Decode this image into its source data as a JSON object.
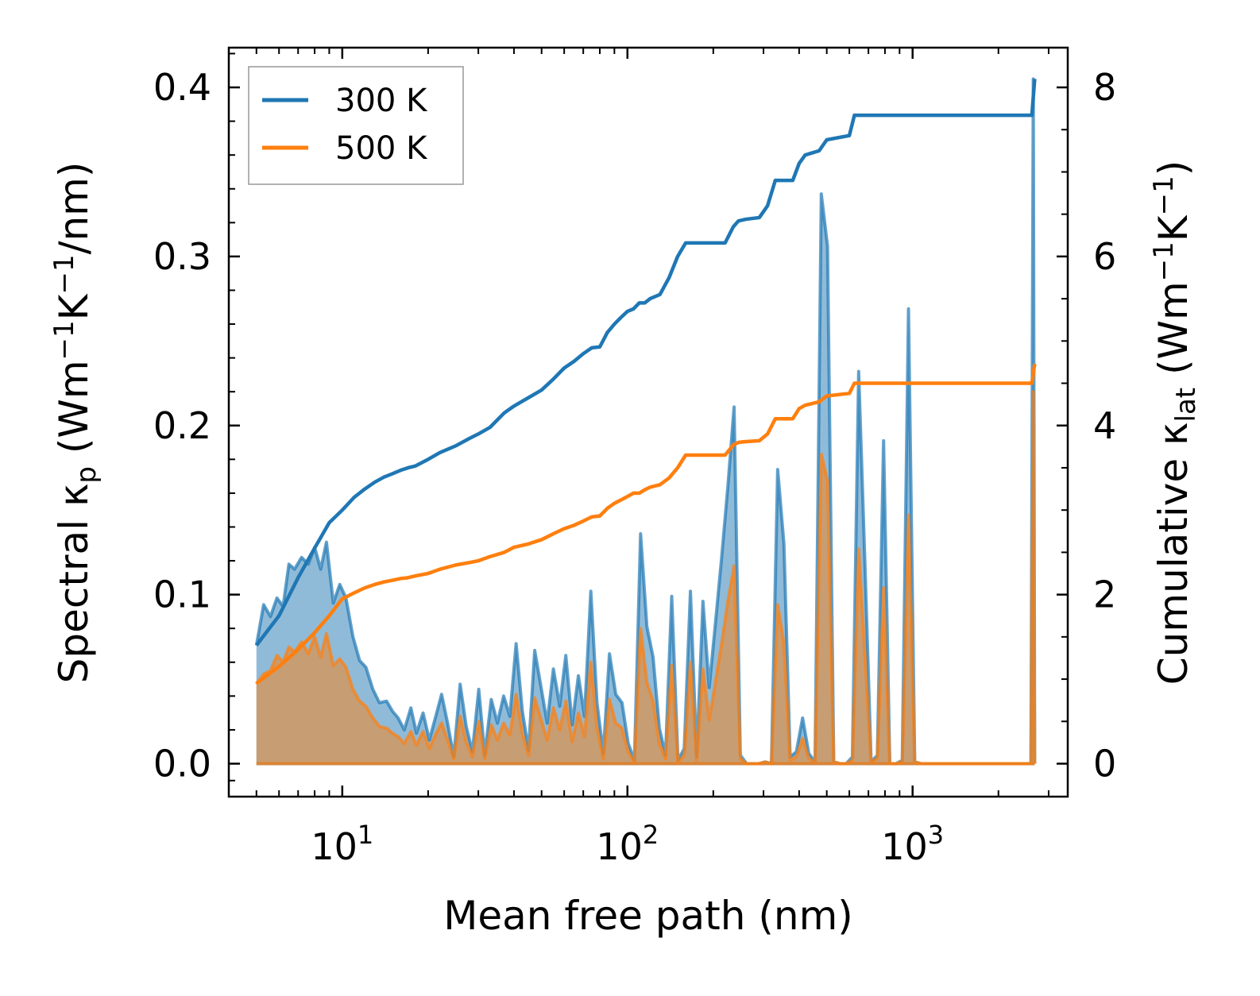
{
  "chart_data": {
    "type": "line",
    "xscale": "log",
    "xlim": [
      4.0,
      3500
    ],
    "ylim_left": [
      -0.0195,
      0.4235
    ],
    "ylim_right": [
      -0.39,
      8.47
    ],
    "xlabel": "Mean free path (nm)",
    "ylabel_left_prefix": "Spectral κ",
    "ylabel_left_sub": "p",
    "ylabel_left_units_1": " (Wm",
    "ylabel_left_sup_1": "−1",
    "ylabel_left_units_2": "K",
    "ylabel_left_sup_2": "−1",
    "ylabel_left_units_3": "/nm)",
    "ylabel_right_prefix": "Cumulative κ",
    "ylabel_right_sub": "lat",
    "ylabel_right_units_1": " (Wm",
    "ylabel_right_sup_1": "−1",
    "ylabel_right_units_2": "K",
    "ylabel_right_sup_2": "−1",
    "ylabel_right_units_3": ")",
    "x_ticks": [
      {
        "value": 10,
        "base": "10",
        "exp": "1"
      },
      {
        "value": 100,
        "base": "10",
        "exp": "2"
      },
      {
        "value": 1000,
        "base": "10",
        "exp": "3"
      }
    ],
    "y_left_ticks": [
      0.0,
      0.1,
      0.2,
      0.3,
      0.4
    ],
    "y_left_tick_labels": [
      "0.0",
      "0.1",
      "0.2",
      "0.3",
      "0.4"
    ],
    "y_right_ticks": [
      0,
      2,
      4,
      6,
      8
    ],
    "y_right_tick_labels": [
      "0",
      "2",
      "4",
      "6",
      "8"
    ],
    "legend": {
      "placement": "upper-left",
      "entries": [
        "300 K",
        "500 K"
      ]
    },
    "colors": {
      "300 K": "#1f77b4",
      "500 K": "#ff7f0e"
    },
    "spectral_x": [
      5.0,
      5.3,
      5.6,
      5.9,
      6.2,
      6.5,
      6.8,
      7.2,
      7.6,
      8.0,
      8.4,
      8.8,
      9.3,
      9.8,
      10.3,
      10.9,
      11.5,
      12.1,
      12.8,
      13.5,
      14.3,
      15.0,
      15.7,
      16.5,
      17.4,
      18.2,
      19.2,
      20.2,
      21.2,
      22.3,
      23.4,
      24.6,
      25.9,
      27.2,
      28.6,
      30.1,
      31.6,
      33.3,
      35.0,
      36.8,
      38.7,
      40.7,
      42.8,
      45.0,
      47.3,
      49.8,
      52.3,
      55.0,
      57.9,
      60.8,
      64.0,
      67.3,
      70.7,
      74.4,
      78.2,
      82.3,
      86.5,
      91.0,
      95.7,
      100.6,
      105.8,
      111.2,
      117.0,
      123.0,
      129.4,
      136.0,
      143.0,
      150.4,
      158.2,
      166.3,
      174.9,
      184.0,
      193.5,
      203.5,
      214.0,
      225.0,
      236.6,
      248.8,
      261.6,
      275.1,
      289.3,
      304.2,
      319.9,
      336.4,
      353.8,
      372.0,
      391.2,
      411.4,
      432.6,
      454.9,
      478.4,
      503.1,
      529.0,
      556.3,
      585.0,
      615.2,
      646.9,
      680.3,
      715.4,
      752.3,
      791.1,
      831.9,
      874.8,
      919.9,
      967.4,
      1017.3,
      1069.8,
      1125.0,
      1183.0,
      1244.0,
      1308.2,
      1375.7,
      1446.6,
      1521.2,
      1599.7,
      1682.2,
      1768.9,
      1860.2,
      1956.1,
      2057.0,
      2163.1,
      2274.7,
      2392.0,
      2515.4,
      2600,
      2650,
      2680
    ],
    "series": [
      {
        "name": "300 K",
        "spectral": [
          0.07,
          0.094,
          0.087,
          0.098,
          0.093,
          0.118,
          0.115,
          0.122,
          0.118,
          0.128,
          0.115,
          0.131,
          0.095,
          0.106,
          0.098,
          0.075,
          0.061,
          0.057,
          0.044,
          0.036,
          0.037,
          0.031,
          0.027,
          0.02,
          0.033,
          0.018,
          0.03,
          0.014,
          0.027,
          0.041,
          0.024,
          0.004,
          0.047,
          0.022,
          0.007,
          0.044,
          0.005,
          0.038,
          0.024,
          0.04,
          0.028,
          0.071,
          0.031,
          0.008,
          0.067,
          0.045,
          0.024,
          0.056,
          0.034,
          0.064,
          0.023,
          0.052,
          0.028,
          0.102,
          0.036,
          0.006,
          0.065,
          0.041,
          0.036,
          0.012,
          0.002,
          0.136,
          0.081,
          0.063,
          0.021,
          0.005,
          0.099,
          0.002,
          0.009,
          0.102,
          0.004,
          0.096,
          0.045,
          0.083,
          0.122,
          0.164,
          0.211,
          0.005,
          0.0,
          0.0,
          0.0,
          0.001,
          0.0,
          0.174,
          0.13,
          0.004,
          0.007,
          0.027,
          0.006,
          0.001,
          0.337,
          0.306,
          0.001,
          0.0,
          0.0,
          0.004,
          0.232,
          0.119,
          0.001,
          0.005,
          0.191,
          0.0,
          0.0,
          0.002,
          0.269,
          0.001,
          0.0,
          0.0,
          0.0,
          0.0,
          0.0,
          0.0,
          0.0,
          0.0,
          0.0,
          0.0,
          0.0,
          0.0,
          0.0,
          0.0,
          0.0,
          0.0,
          0.0,
          0.0,
          0.0,
          0.405,
          0.0
        ],
        "cumulative_x": [
          5.0,
          6.0,
          7.0,
          8.0,
          9.0,
          10.0,
          11.0,
          12.0,
          13.0,
          14.0,
          15.0,
          16.0,
          17.0,
          18.0,
          20.0,
          22.0,
          25.0,
          28.0,
          30.0,
          33.0,
          37.0,
          40.0,
          45.0,
          50.0,
          55.0,
          60.0,
          65.0,
          70.0,
          75.0,
          80.0,
          85.0,
          90.0,
          95.0,
          100.0,
          105.0,
          110.0,
          115.0,
          120.0,
          130.0,
          140.0,
          150.0,
          160.0,
          165.0,
          180.0,
          200.0,
          220.0,
          235.0,
          245.0,
          260.0,
          290.0,
          310.0,
          330.0,
          340.0,
          380.0,
          400.0,
          420.0,
          470.0,
          500.0,
          600.0,
          625.0,
          640.0,
          1000.0,
          2000.0,
          2550.0,
          2620.0,
          2680.0
        ],
        "cumulative": [
          1.4,
          1.75,
          2.2,
          2.55,
          2.85,
          3.0,
          3.15,
          3.25,
          3.33,
          3.39,
          3.43,
          3.47,
          3.5,
          3.52,
          3.6,
          3.68,
          3.76,
          3.85,
          3.9,
          3.98,
          4.15,
          4.23,
          4.33,
          4.42,
          4.55,
          4.68,
          4.76,
          4.85,
          4.92,
          4.93,
          5.1,
          5.2,
          5.28,
          5.35,
          5.38,
          5.45,
          5.45,
          5.5,
          5.55,
          5.75,
          6.0,
          6.16,
          6.16,
          6.16,
          6.16,
          6.16,
          6.35,
          6.42,
          6.44,
          6.46,
          6.6,
          6.9,
          6.9,
          6.9,
          7.1,
          7.2,
          7.25,
          7.38,
          7.43,
          7.67,
          7.67,
          7.67,
          7.67,
          7.67,
          7.67,
          8.1
        ]
      },
      {
        "name": "500 K",
        "spectral": [
          0.047,
          0.053,
          0.055,
          0.064,
          0.06,
          0.069,
          0.066,
          0.072,
          0.065,
          0.075,
          0.063,
          0.077,
          0.058,
          0.062,
          0.057,
          0.044,
          0.037,
          0.034,
          0.027,
          0.022,
          0.021,
          0.018,
          0.016,
          0.012,
          0.019,
          0.011,
          0.019,
          0.009,
          0.017,
          0.024,
          0.014,
          0.003,
          0.028,
          0.013,
          0.004,
          0.025,
          0.003,
          0.023,
          0.014,
          0.024,
          0.017,
          0.041,
          0.018,
          0.005,
          0.039,
          0.026,
          0.014,
          0.033,
          0.02,
          0.037,
          0.013,
          0.03,
          0.016,
          0.06,
          0.021,
          0.003,
          0.038,
          0.024,
          0.021,
          0.007,
          0.001,
          0.08,
          0.048,
          0.037,
          0.012,
          0.003,
          0.058,
          0.001,
          0.005,
          0.06,
          0.002,
          0.056,
          0.026,
          0.048,
          0.071,
          0.096,
          0.117,
          0.003,
          0.0,
          0.0,
          0.0,
          0.001,
          0.0,
          0.094,
          0.071,
          0.002,
          0.004,
          0.015,
          0.003,
          0.001,
          0.183,
          0.167,
          0.001,
          0.0,
          0.0,
          0.002,
          0.127,
          0.065,
          0.001,
          0.003,
          0.104,
          0.0,
          0.0,
          0.001,
          0.147,
          0.001,
          0.0,
          0.0,
          0.0,
          0.0,
          0.0,
          0.0,
          0.0,
          0.0,
          0.0,
          0.0,
          0.0,
          0.0,
          0.0,
          0.0,
          0.0,
          0.0,
          0.0,
          0.0,
          0.0,
          0.22,
          0.0
        ],
        "cumulative_x": [
          5.0,
          6.0,
          7.0,
          8.0,
          9.0,
          10.0,
          11.0,
          12.0,
          13.0,
          14.0,
          15.0,
          16.0,
          17.0,
          18.0,
          20.0,
          22.0,
          25.0,
          28.0,
          30.0,
          33.0,
          37.0,
          40.0,
          45.0,
          50.0,
          55.0,
          60.0,
          65.0,
          70.0,
          75.0,
          80.0,
          85.0,
          90.0,
          95.0,
          100.0,
          105.0,
          110.0,
          115.0,
          120.0,
          130.0,
          140.0,
          150.0,
          160.0,
          165.0,
          180.0,
          200.0,
          220.0,
          235.0,
          245.0,
          260.0,
          290.0,
          310.0,
          330.0,
          340.0,
          380.0,
          400.0,
          420.0,
          470.0,
          500.0,
          600.0,
          625.0,
          640.0,
          1000.0,
          2000.0,
          2550.0,
          2620.0,
          2680.0
        ],
        "cumulative": [
          0.95,
          1.15,
          1.35,
          1.55,
          1.75,
          1.95,
          2.02,
          2.08,
          2.12,
          2.15,
          2.17,
          2.19,
          2.2,
          2.22,
          2.25,
          2.3,
          2.35,
          2.38,
          2.4,
          2.45,
          2.5,
          2.56,
          2.6,
          2.65,
          2.72,
          2.78,
          2.82,
          2.87,
          2.92,
          2.93,
          3.02,
          3.08,
          3.12,
          3.16,
          3.2,
          3.2,
          3.24,
          3.27,
          3.3,
          3.38,
          3.5,
          3.65,
          3.65,
          3.65,
          3.65,
          3.65,
          3.77,
          3.8,
          3.81,
          3.82,
          3.9,
          4.08,
          4.08,
          4.08,
          4.2,
          4.24,
          4.28,
          4.35,
          4.38,
          4.5,
          4.5,
          4.5,
          4.5,
          4.5,
          4.5,
          4.73
        ]
      }
    ]
  }
}
